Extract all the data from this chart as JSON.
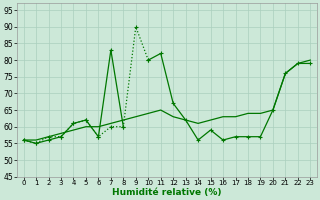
{
  "x_all": [
    0,
    1,
    2,
    3,
    4,
    5,
    6,
    7,
    8,
    9,
    10,
    11,
    12,
    13,
    14,
    15,
    16,
    17,
    18,
    19,
    20,
    21,
    22,
    23
  ],
  "line_dotted_x": [
    0,
    1,
    2,
    3,
    4,
    5,
    6,
    7,
    8,
    9,
    10
  ],
  "line_dotted_y": [
    56,
    55,
    57,
    57,
    61,
    62,
    57,
    60,
    60,
    90,
    80
  ],
  "line_peaked_x": [
    0,
    1,
    2,
    3,
    4,
    5,
    6,
    7,
    8,
    9,
    10,
    11,
    12,
    13,
    14,
    15,
    16,
    17,
    18,
    19,
    20,
    21,
    22,
    23
  ],
  "line_peaked_y": [
    56,
    55,
    56,
    57,
    61,
    62,
    57,
    83,
    60,
    null,
    80,
    82,
    67,
    62,
    56,
    59,
    56,
    57,
    57,
    57,
    65,
    76,
    79,
    79
  ],
  "line_smooth_x": [
    0,
    1,
    2,
    3,
    4,
    5,
    6,
    7,
    8,
    9,
    10,
    11,
    12,
    13,
    14,
    15,
    16,
    17,
    18,
    19,
    20,
    21,
    22,
    23
  ],
  "line_smooth_y": [
    56,
    56,
    57,
    58,
    59,
    60,
    60,
    61,
    62,
    63,
    64,
    65,
    63,
    62,
    61,
    62,
    63,
    63,
    64,
    64,
    65,
    76,
    79,
    80
  ],
  "bg_color": "#cce8d8",
  "grid_color": "#aacfbe",
  "line_color": "#007700",
  "xlabel": "Humidité relative (%)",
  "ylim": [
    45,
    97
  ],
  "yticks": [
    45,
    50,
    55,
    60,
    65,
    70,
    75,
    80,
    85,
    90,
    95
  ],
  "xlim": [
    -0.5,
    23.5
  ],
  "figw": 3.2,
  "figh": 2.0,
  "dpi": 100
}
